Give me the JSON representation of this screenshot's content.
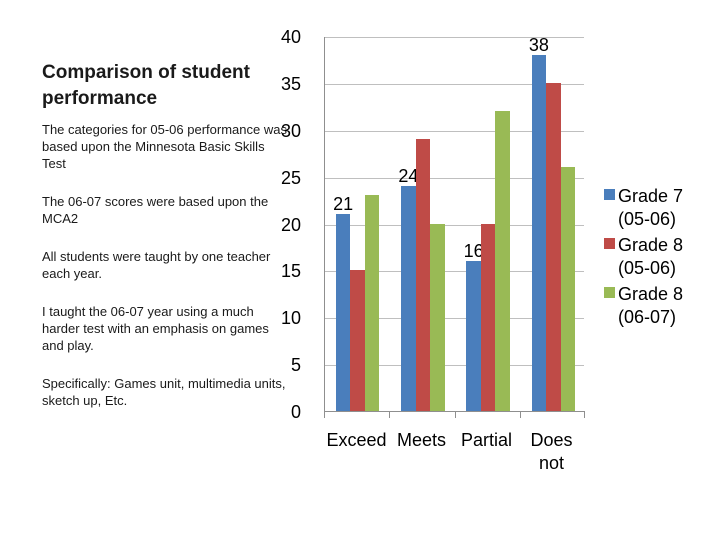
{
  "slide": {
    "title": "Comparison of student performance",
    "notes": [
      "The categories for 05-06 performance was based upon the Minnesota Basic Skills Test",
      "The 06-07 scores were based upon the MCA2",
      "All students were taught by one teacher each year.",
      "I taught the 06-07 year using a much harder test with an emphasis on games and play.",
      "Specifically: Games unit, multimedia units, sketch up, Etc."
    ]
  },
  "chart_data": {
    "type": "bar",
    "title": "",
    "categories": [
      "Exceed",
      "Meets",
      "Partial",
      "Does not"
    ],
    "series": [
      {
        "name": "Grade 7 (05-06)",
        "legend_lines": "Grade 7\n(05-06)",
        "color": "#4A7EBC",
        "values": [
          21,
          24,
          16,
          38
        ],
        "data_labels": [
          21,
          24,
          16,
          38
        ]
      },
      {
        "name": "Grade 8 (05-06)",
        "legend_lines": "Grade 8\n(05-06)",
        "color": "#BF4B47",
        "values": [
          15,
          29,
          20,
          35
        ],
        "data_labels": null
      },
      {
        "name": "Grade 8 (06-07)",
        "legend_lines": "Grade 8\n(06-07)",
        "color": "#99BA55",
        "values": [
          23,
          20,
          32,
          26
        ],
        "data_labels": null
      }
    ],
    "xlabel": "",
    "ylabel": "",
    "ylim": [
      0,
      40
    ],
    "yticks": [
      0,
      5,
      10,
      15,
      20,
      25,
      30,
      35,
      40
    ],
    "grid": true,
    "legend_position": "right",
    "colors": {
      "gridline": "#BFBFBF",
      "axis": "#8F8F8F",
      "label_text": "#000000"
    }
  }
}
